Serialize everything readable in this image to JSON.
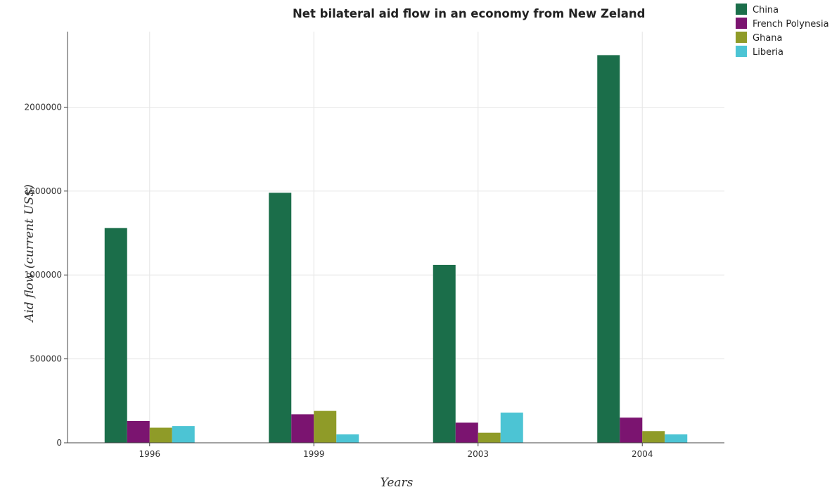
{
  "chart_data": {
    "type": "bar",
    "title": "Net bilateral aid flow in an economy from New Zeland",
    "xlabel": "Years",
    "ylabel": "Aid flow (current US$)",
    "categories": [
      "1996",
      "1999",
      "2003",
      "2004"
    ],
    "series": [
      {
        "name": "China",
        "color": "#1b6e4a",
        "values": [
          1280000,
          1490000,
          1060000,
          2310000
        ]
      },
      {
        "name": "French Polynesia",
        "color": "#7b1470",
        "values": [
          130000,
          170000,
          120000,
          150000
        ]
      },
      {
        "name": "Ghana",
        "color": "#8f9b28",
        "values": [
          90000,
          190000,
          60000,
          70000
        ]
      },
      {
        "name": "Liberia",
        "color": "#4cc4d4",
        "values": [
          100000,
          50000,
          180000,
          50000
        ]
      }
    ],
    "ylim": [
      0,
      2450000
    ],
    "yticks": [
      0,
      500000,
      1000000,
      1500000,
      2000000
    ],
    "ytick_labels": [
      "0",
      "500000",
      "1000000",
      "1500000",
      "2000000"
    ],
    "grid": true,
    "legend_position": "top-right"
  }
}
